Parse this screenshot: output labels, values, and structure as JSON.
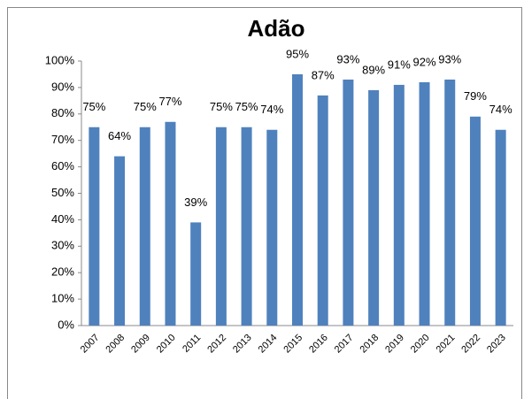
{
  "chart_data": {
    "type": "bar",
    "title": "Adão",
    "categories": [
      "2007",
      "2008",
      "2009",
      "2010",
      "2011",
      "2012",
      "2013",
      "2014",
      "2015",
      "2016",
      "2017",
      "2018",
      "2019",
      "2020",
      "2021",
      "2022",
      "2023"
    ],
    "values": [
      75,
      64,
      75,
      77,
      39,
      75,
      75,
      74,
      95,
      87,
      93,
      89,
      91,
      92,
      93,
      79,
      74
    ],
    "value_labels": [
      "75%",
      "64%",
      "75%",
      "77%",
      "39%",
      "75%",
      "75%",
      "74%",
      "95%",
      "87%",
      "93%",
      "89%",
      "91%",
      "92%",
      "93%",
      "79%",
      "74%"
    ],
    "color": "#4f81bd",
    "ylim": [
      0,
      100
    ],
    "yticks": [
      {
        "value": 0,
        "label": "0%"
      },
      {
        "value": 10,
        "label": "10%"
      },
      {
        "value": 20,
        "label": "20%"
      },
      {
        "value": 30,
        "label": "30%"
      },
      {
        "value": 40,
        "label": "40%"
      },
      {
        "value": 50,
        "label": "50%"
      },
      {
        "value": 60,
        "label": "60%"
      },
      {
        "value": 70,
        "label": "70%"
      },
      {
        "value": 80,
        "label": "80%"
      },
      {
        "value": 90,
        "label": "90%"
      },
      {
        "value": 100,
        "label": "100%"
      }
    ],
    "grid": false
  }
}
